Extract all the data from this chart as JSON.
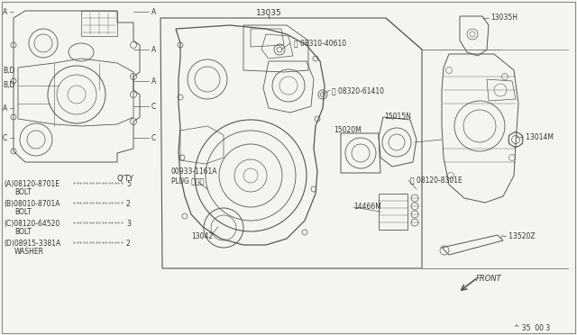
{
  "bg_color": "#f5f5f0",
  "line_color": "#555555",
  "text_color": "#333333",
  "border_color": "#aaaaaa",
  "bom_items": [
    {
      "code": "<A>08120-8701E",
      "qty": "5",
      "desc": "BOLT"
    },
    {
      "code": "<B>08010-8701A",
      "qty": "2",
      "desc": "BOLT"
    },
    {
      "code": "<C>08120-64520",
      "qty": "3",
      "desc": "BOLT"
    },
    {
      "code": "<D>08915-3381A",
      "qty": "2",
      "desc": "WASHER"
    }
  ],
  "footer_text": "^ 35  00 3"
}
